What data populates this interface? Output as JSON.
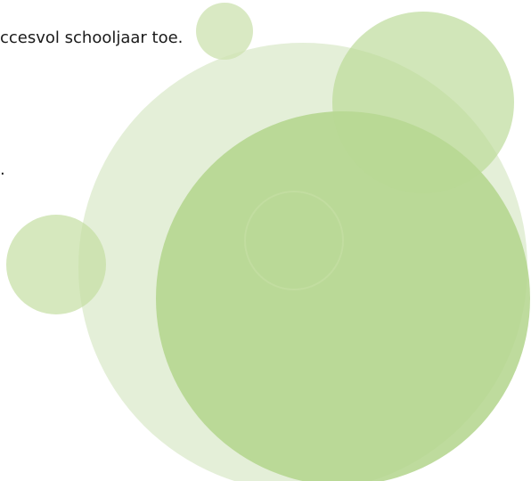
{
  "body": {
    "lines": [
      "ccesvol schooljaar toe.",
      "."
    ]
  }
}
